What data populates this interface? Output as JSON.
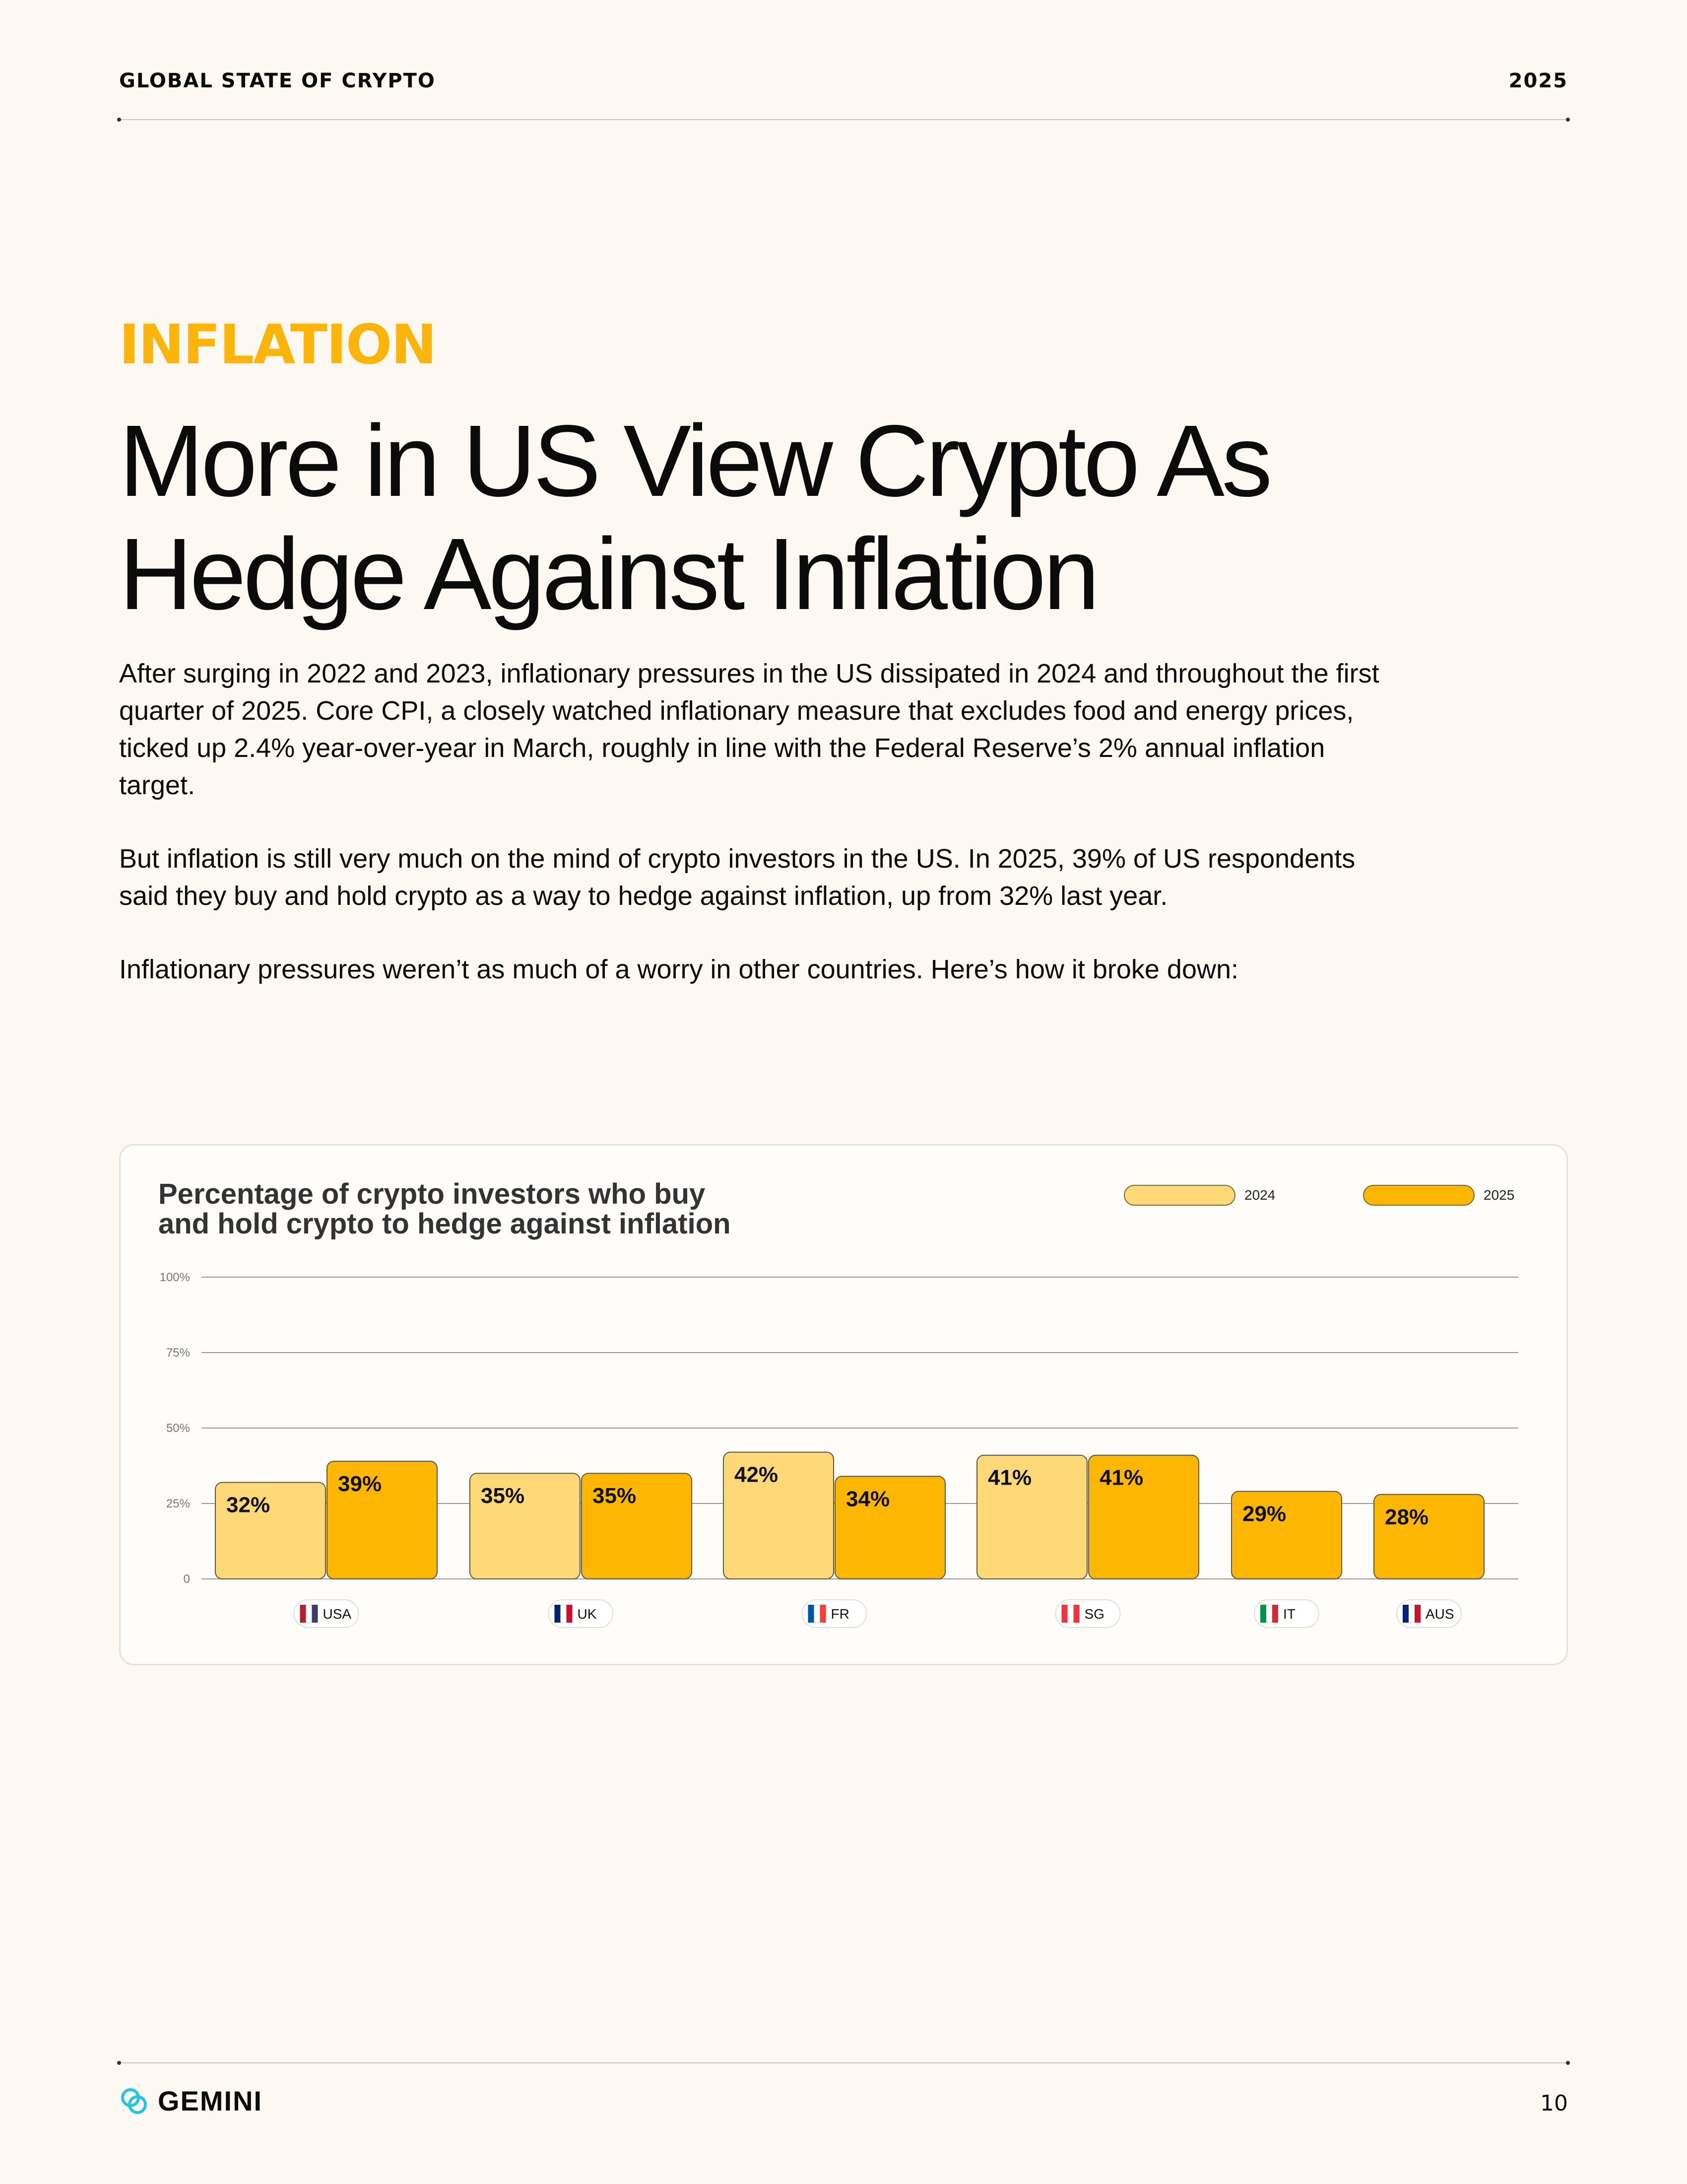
{
  "header": {
    "left": "GLOBAL STATE OF CRYPTO",
    "right": "2025"
  },
  "section_label": "INFLATION",
  "headline": "More in US View Crypto As Hedge Against Inflation",
  "paragraphs": [
    "After surging in 2022 and 2023, inflationary pressures in the US dissipated in 2024 and throughout the first quarter of 2025. Core CPI, a closely watched inflationary measure that excludes food and energy prices, ticked up 2.4% year-over-year in March, roughly in line with the Federal Reserve’s 2% annual inflation target.",
    "But inflation is still very much on the mind of crypto investors in the US. In 2025, 39% of US respondents said they buy and hold crypto as a way to hedge against inflation, up from 32% last year.",
    "Inflationary pressures weren’t as much of a worry in other countries. Here’s how it broke down:"
  ],
  "colors": {
    "accent": "#fbb40a",
    "series_2024": "#ffd978",
    "series_2025": "#fdb702"
  },
  "chart_data": {
    "type": "bar",
    "title": "Percentage of crypto investors who buy\nand hold crypto to hedge against inflation",
    "categories": [
      "USA",
      "UK",
      "FR",
      "SG",
      "IT",
      "AUS"
    ],
    "flags": [
      "us-flag-icon",
      "uk-flag-icon",
      "france-flag-icon",
      "singapore-flag-icon",
      "italy-flag-icon",
      "australia-flag-icon"
    ],
    "series": [
      {
        "name": "2024",
        "values": [
          32,
          35,
          42,
          41,
          null,
          null
        ]
      },
      {
        "name": "2025",
        "values": [
          39,
          35,
          34,
          41,
          29,
          28
        ]
      }
    ],
    "yticks": [
      "0",
      "25%",
      "50%",
      "75%",
      "100%"
    ],
    "ylim": [
      0,
      100
    ],
    "legend_position": "top-right",
    "grid": true
  },
  "footer": {
    "logo_text": "GEMINI",
    "page_number": "10"
  }
}
